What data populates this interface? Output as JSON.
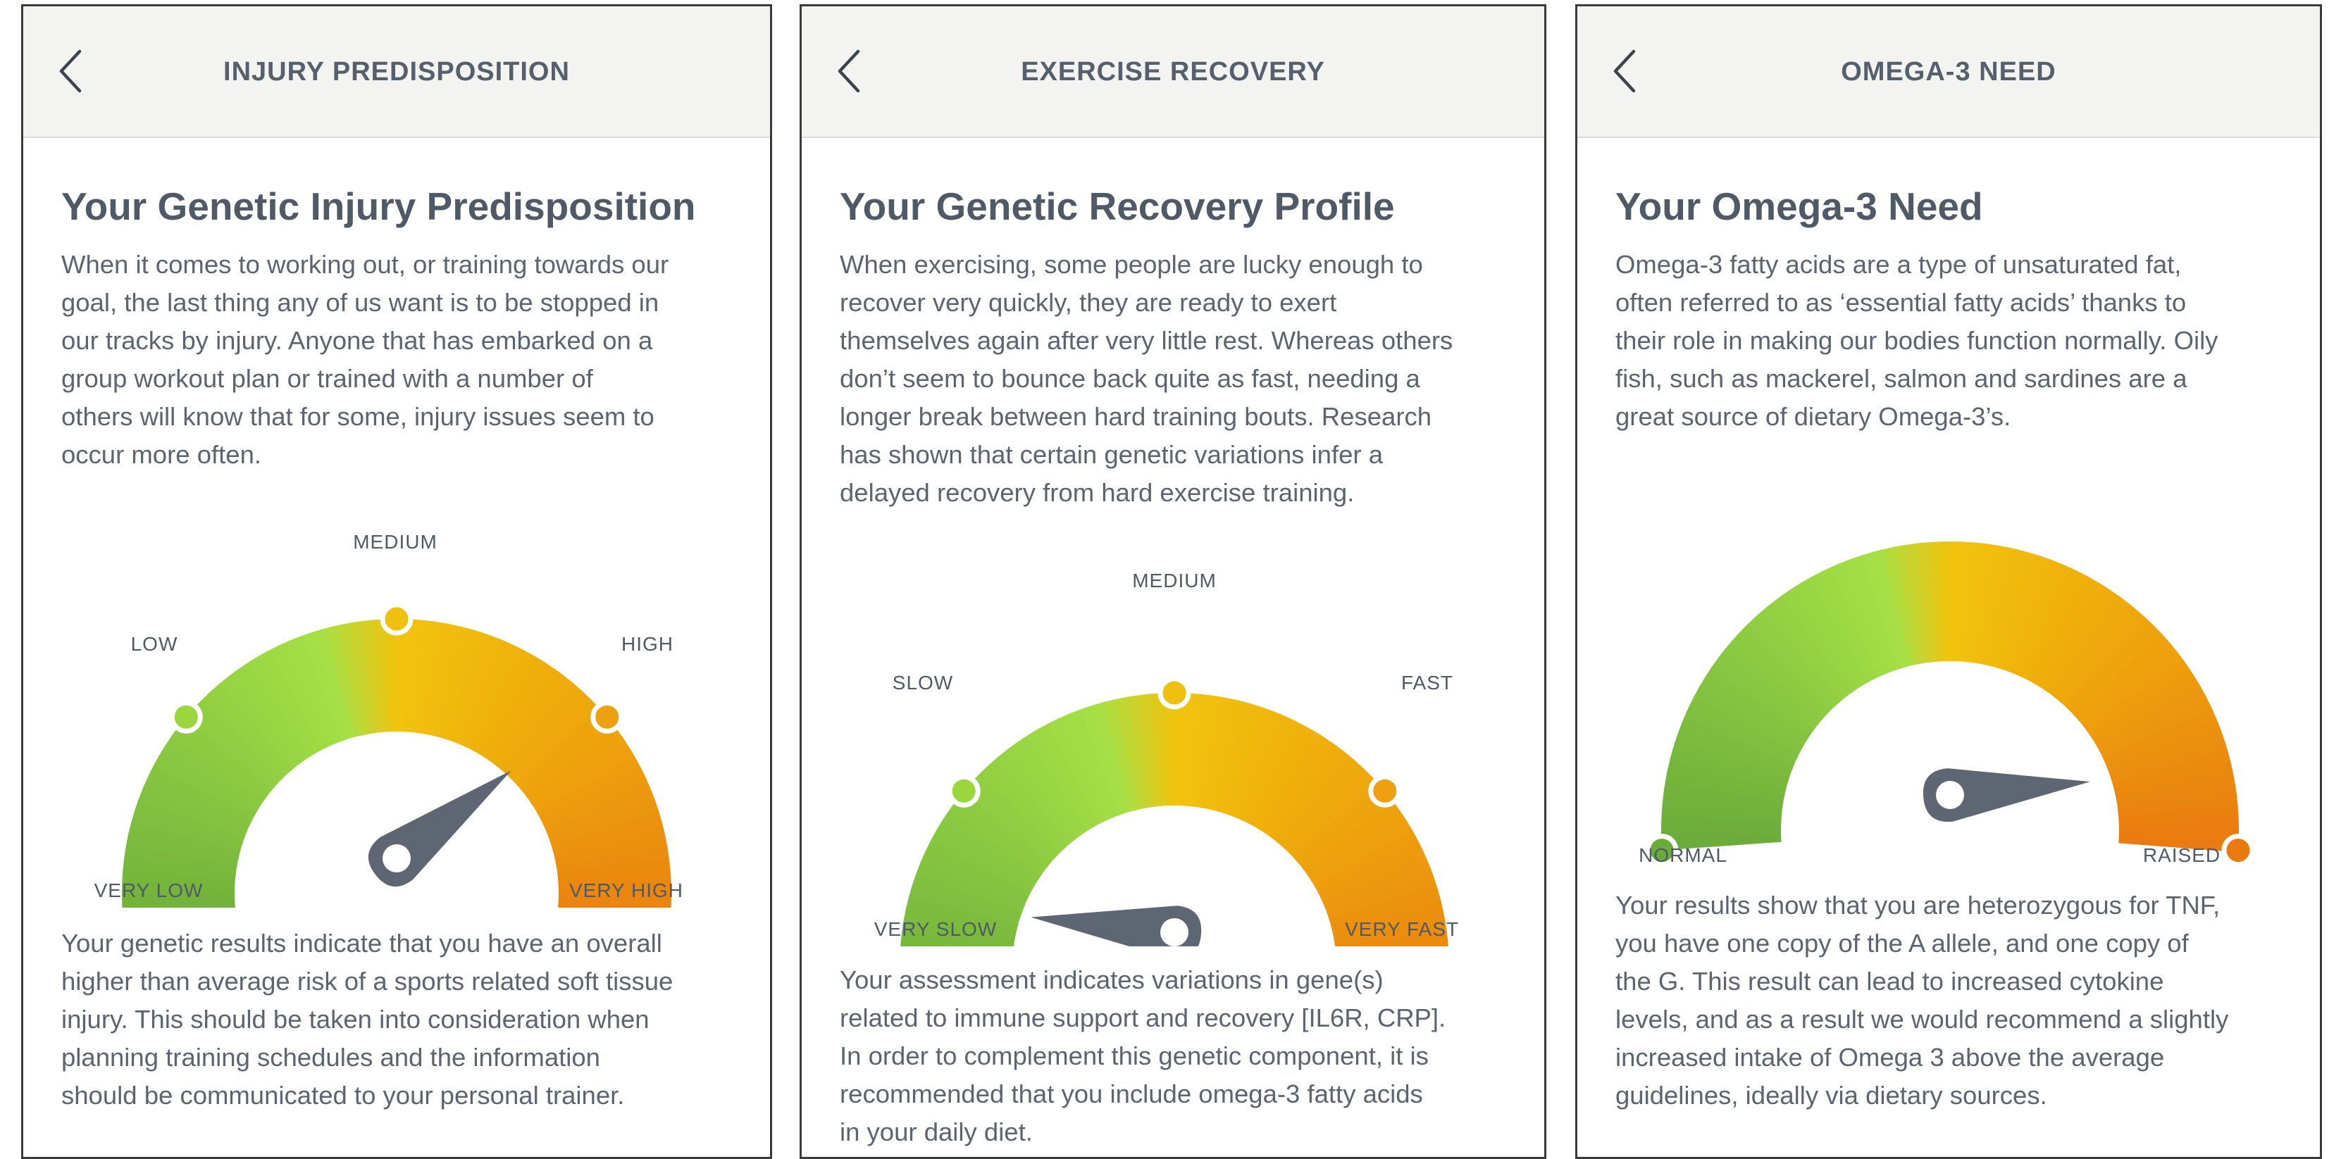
{
  "panels": [
    {
      "header_title": "INJURY PREDISPOSITION",
      "section_title": "Your Genetic Injury Predisposition",
      "intro_lines": [
        "When it comes to working out, or training towards our",
        "goal, the last thing any of us want is to be stopped in",
        "our tracks by injury. Anyone that has embarked on a",
        "group workout plan or trained with a number of",
        "others will know that for some, injury issues seem to",
        "occur more often."
      ],
      "gauge": {
        "labels": [
          "VERY LOW",
          "LOW",
          "MEDIUM",
          "HIGH",
          "VERY HIGH"
        ],
        "marker_colors": [
          "#6aab3a",
          "#9ad63e",
          "#f0c010",
          "#eda010",
          "#e97a10"
        ],
        "needle_level": 0.75
      },
      "result_lines": [
        "Your genetic results indicate that you have an overall",
        "higher than average risk of a sports related soft tissue",
        "injury. This should be taken into consideration when",
        "planning training schedules and the information",
        "should be communicated to your personal trainer."
      ]
    },
    {
      "header_title": "EXERCISE RECOVERY",
      "section_title": "Your Genetic Recovery Profile",
      "intro_lines": [
        "When exercising, some people are lucky enough to",
        "recover very quickly, they are ready to exert",
        "themselves again after very little rest. Whereas others",
        "don’t seem to bounce back quite as fast, needing a",
        "longer break between hard training bouts. Research",
        "has shown that certain genetic variations infer a",
        "delayed recovery from hard exercise training."
      ],
      "gauge": {
        "labels": [
          "VERY SLOW",
          "SLOW",
          "MEDIUM",
          "FAST",
          "VERY FAST"
        ],
        "marker_colors": [
          "#6aab3a",
          "#9ad63e",
          "#f0c010",
          "#eda010",
          "#e97a10"
        ],
        "needle_level": 0.1
      },
      "result_lines": [
        "Your assessment indicates variations in gene(s)",
        "related to immune support and recovery [IL6R, CRP].",
        "In order to complement this genetic component, it is",
        "recommended that you include omega-3 fatty acids",
        "in your daily diet."
      ]
    },
    {
      "header_title": "OMEGA-3 NEED",
      "section_title": "Your Omega-3 Need",
      "intro_lines": [
        "Omega-3 fatty acids are a type of unsaturated fat,",
        "often referred to as ‘essential fatty acids’ thanks to",
        "their role in making our bodies function normally. Oily",
        "fish, such as mackerel, salmon and sardines are a",
        "great source of dietary Omega-3’s."
      ],
      "gauge": {
        "labels": [
          "NORMAL",
          "RAISED"
        ],
        "marker_colors": [
          "#6aab3a",
          "#e97a10"
        ],
        "needle_level": 0.95
      },
      "result_lines": [
        "Your results show that you are heterozygous for TNF,",
        "you have one copy of the A allele, and one copy of",
        "the G. This result can lead to increased cytokine",
        "levels, and as a result we would recommend a slightly",
        "increased intake of Omega 3 above the average",
        "guidelines, ideally via dietary sources."
      ]
    }
  ],
  "colors": {
    "header_bg": "#f3f4f2",
    "title": "#4f5a66",
    "body_text": "#5b6470",
    "needle": "#5d6672",
    "gauge_green": "#6aab3a",
    "gauge_lime": "#a6e046",
    "gauge_yellow": "#f2c30d",
    "gauge_orange": "#e97a10"
  },
  "icons": {
    "back": "chevron-left-icon"
  }
}
